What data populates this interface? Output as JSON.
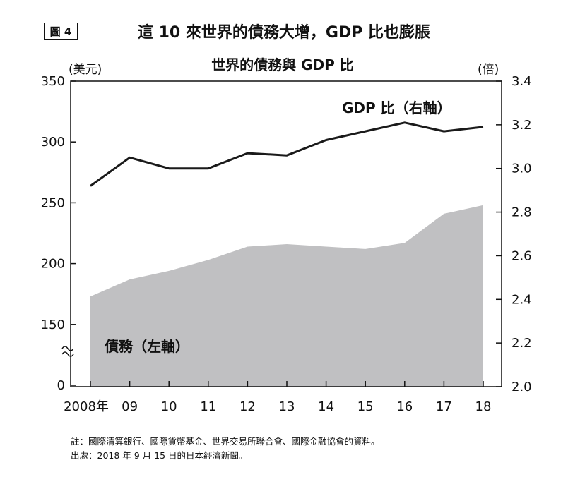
{
  "figure_label": "圖 4",
  "headline": "這 10 來世界的債務大增，GDP 比也膨脹",
  "chart_data": {
    "type": "area+line",
    "title": "世界的債務與 GDP 比",
    "categories": [
      "2008年",
      "09",
      "10",
      "11",
      "12",
      "13",
      "14",
      "15",
      "16",
      "17",
      "18"
    ],
    "series": [
      {
        "name": "債務（左軸）",
        "kind": "area",
        "axis": "left",
        "color": "#c0c0c2",
        "values": [
          173,
          187,
          194,
          203,
          214,
          216,
          214,
          212,
          217,
          241,
          248
        ]
      },
      {
        "name": "GDP 比（右軸）",
        "kind": "line",
        "axis": "right",
        "color": "#1a1a1a",
        "values": [
          2.92,
          3.05,
          3.0,
          3.0,
          3.07,
          3.06,
          3.13,
          3.17,
          3.21,
          3.17,
          3.19
        ]
      }
    ],
    "left_axis": {
      "unit": "(美元)",
      "ticks": [
        "0",
        "150",
        "200",
        "250",
        "300",
        "350"
      ],
      "range": [
        100,
        350
      ],
      "break": true
    },
    "right_axis": {
      "unit": "(倍)",
      "ticks": [
        "2.0",
        "2.2",
        "2.4",
        "2.6",
        "2.8",
        "3.0",
        "3.2",
        "3.4"
      ],
      "range": [
        2.0,
        3.4
      ]
    },
    "labels": {
      "debt": "債務（左軸）",
      "ratio": "GDP 比（右軸）"
    }
  },
  "notes": {
    "source_line": "註：國際清算銀行、國際貨幣基金、世界交易所聯合會、國際金融協會的資料。",
    "origin_line": "出處：2018 年 9 月 15 日的日本經濟新聞。"
  }
}
